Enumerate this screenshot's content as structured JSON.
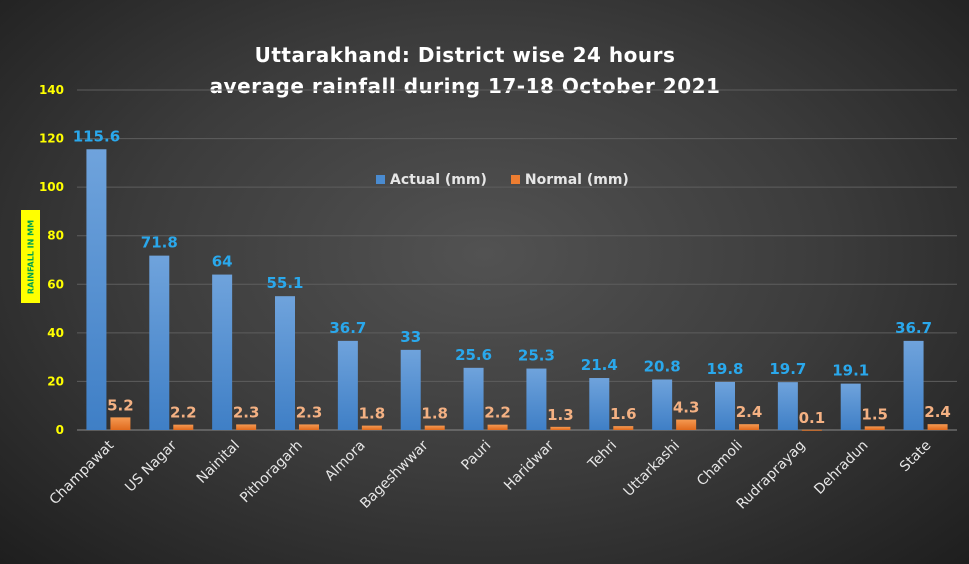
{
  "chart_data": {
    "type": "bar",
    "title_lines": [
      "Uttarakhand: District wise 24 hours",
      "average rainfall during 17-18 October 2021"
    ],
    "ylabel": "RAINFALL IN MM",
    "xlabel": "",
    "ylim": [
      0,
      140
    ],
    "yticks": [
      0,
      20,
      40,
      60,
      80,
      100,
      120,
      140
    ],
    "grid": true,
    "legend_position": "top-center",
    "categories": [
      "Champawat",
      "US Nagar",
      "Nainital",
      "Pithoragarh",
      "Almora",
      "Bageshwwar",
      "Pauri",
      "Haridwar",
      "Tehri",
      "Uttarkashi",
      "Chamoli",
      "Rudraprayag",
      "Dehradun",
      "State"
    ],
    "series": [
      {
        "name": "Actual (mm)",
        "color": "#4a8bd0",
        "label_color": "#2aa8ec",
        "values": [
          115.6,
          71.8,
          64,
          55.1,
          36.7,
          33,
          25.6,
          25.3,
          21.4,
          20.8,
          19.8,
          19.7,
          19.1,
          36.7
        ]
      },
      {
        "name": "Normal (mm)",
        "color": "#ed7d31",
        "label_color": "#f4b183",
        "values": [
          5.2,
          2.2,
          2.3,
          2.3,
          1.8,
          1.8,
          2.2,
          1.3,
          1.6,
          4.3,
          2.4,
          0.1,
          1.5,
          2.4
        ]
      }
    ]
  }
}
